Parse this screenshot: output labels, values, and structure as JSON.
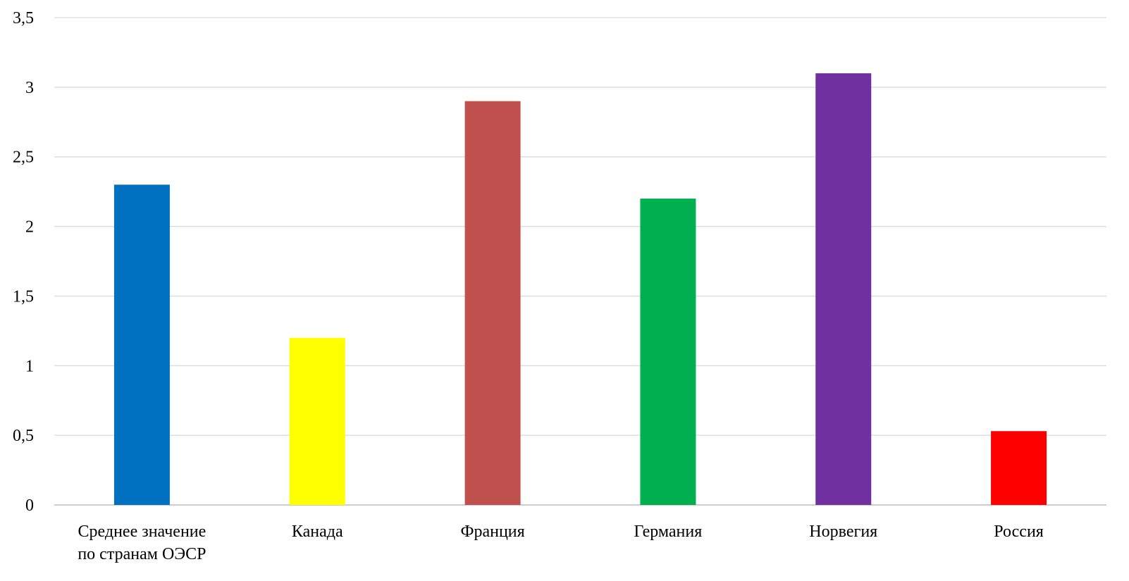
{
  "chart_data": {
    "type": "bar",
    "title": "",
    "xlabel": "",
    "ylabel": "",
    "categories": [
      [
        "Среднее значение",
        "по странам ОЭСР"
      ],
      [
        "Канада"
      ],
      [
        "Франция"
      ],
      [
        "Германия"
      ],
      [
        "Норвегия"
      ],
      [
        "Россия"
      ]
    ],
    "values": [
      2.3,
      1.2,
      2.9,
      2.2,
      3.1,
      0.53
    ],
    "colors": [
      "#0070c0",
      "#ffff00",
      "#c0504d",
      "#00b050",
      "#7030a0",
      "#ff0000"
    ],
    "ylim": [
      0,
      3.5
    ],
    "yticks": [
      0,
      0.5,
      1,
      1.5,
      2,
      2.5,
      3,
      3.5
    ],
    "ytick_labels": [
      "0",
      "0,5",
      "1",
      "1,5",
      "2",
      "2,5",
      "3",
      "3,5"
    ],
    "grid": true,
    "legend": "none"
  }
}
